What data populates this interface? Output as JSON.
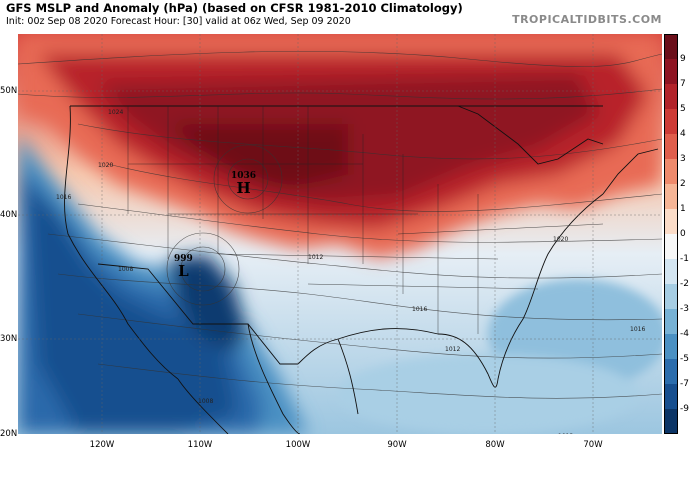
{
  "header": {
    "title": "GFS MSLP and Anomaly (hPa) (based on CFSR 1981-2010 Climatology)",
    "subtitle": "Init: 00z Sep 08 2020   Forecast Hour: [30]   valid at 06z Wed, Sep 09 2020",
    "brand": "TROPICALTIDBITS.COM"
  },
  "colorbar": {
    "labels": [
      "9",
      "7",
      "5",
      "4",
      "3",
      "2",
      "1",
      "0",
      "-1",
      "-2",
      "-3",
      "-4",
      "-5",
      "-7",
      "-9"
    ],
    "colors": [
      "#6b0f1a",
      "#8e1422",
      "#b2232a",
      "#cd3b36",
      "#e05e4c",
      "#ef8a6c",
      "#f6b596",
      "#fbdcc8",
      "#f7f7f7",
      "#d3e5f1",
      "#a6cde3",
      "#77b2d5",
      "#4b91c3",
      "#2b6dad",
      "#174f8f",
      "#0c3566"
    ]
  },
  "axes": {
    "lat_labels": [
      "50N",
      "40N",
      "30N",
      "20N"
    ],
    "lon_labels": [
      "120W",
      "110W",
      "100W",
      "90W",
      "80W",
      "70W"
    ]
  },
  "pressure_centers": [
    {
      "letter": "H",
      "value": "1036",
      "color": "#2233cc"
    },
    {
      "letter": "L",
      "value": "999",
      "color": "#e02020"
    }
  ],
  "isobar_labels": [
    "1024",
    "1020",
    "1016",
    "1012",
    "1008",
    "1016",
    "1020",
    "1012",
    "1016",
    "1008",
    "1013"
  ]
}
